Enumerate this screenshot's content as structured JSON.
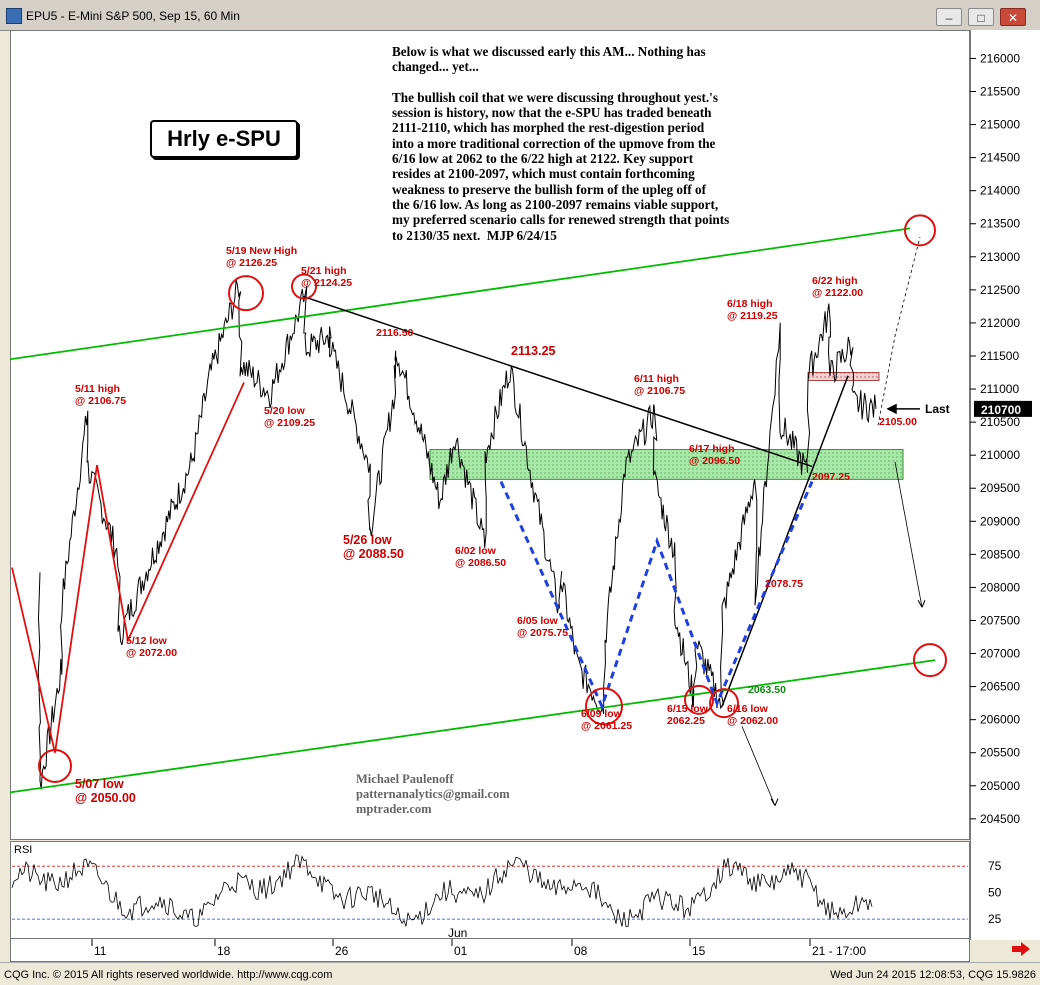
{
  "window": {
    "title": "EPU5 - E-Mini S&P 500, Sep 15, 60 Min",
    "buttons": [
      "–",
      "□",
      "✕"
    ]
  },
  "chart_data": {
    "type": "line",
    "title": "Hrly e-SPU",
    "instrument": "EPU5 - E-Mini S&P 500, Sep 15, 60 Min",
    "y_ticks": [
      "216000",
      "215500",
      "215000",
      "214500",
      "214000",
      "213500",
      "213000",
      "212500",
      "212000",
      "211500",
      "211000",
      "210500",
      "210000",
      "209500",
      "209000",
      "208500",
      "208000",
      "207500",
      "207000",
      "206500",
      "206000",
      "205500",
      "205000",
      "204500"
    ],
    "y_tick_values": [
      2160,
      2155,
      2150,
      2145,
      2140,
      2135,
      2130,
      2125,
      2120,
      2115,
      2110,
      2105,
      2100,
      2095,
      2090,
      2085,
      2080,
      2075,
      2070,
      2065,
      2060,
      2055,
      2050,
      2045
    ],
    "ylim": [
      2041.8,
      2164.3
    ],
    "x_ticks": [
      "11",
      "18",
      "26",
      "Jun",
      "01",
      "08",
      "15",
      "21 - 17:00"
    ],
    "last_price_label": "210700",
    "last_label": "Last",
    "price_path": [
      {
        "x": "5/07",
        "y": 2082
      },
      {
        "x": "5/07",
        "y": 2060
      },
      {
        "x": "5/07",
        "y": 2050
      },
      {
        "x": "5/08",
        "y": 2068
      },
      {
        "x": "5/08",
        "y": 2078
      },
      {
        "x": "5/11",
        "y": 2106.75
      },
      {
        "x": "5/11",
        "y": 2098
      },
      {
        "x": "5/12",
        "y": 2085
      },
      {
        "x": "5/12",
        "y": 2072
      },
      {
        "x": "5/13",
        "y": 2082
      },
      {
        "x": "5/14",
        "y": 2091
      },
      {
        "x": "5/15",
        "y": 2099
      },
      {
        "x": "5/18",
        "y": 2112
      },
      {
        "x": "5/19",
        "y": 2126.25
      },
      {
        "x": "5/19",
        "y": 2114
      },
      {
        "x": "5/20",
        "y": 2109.25
      },
      {
        "x": "5/21",
        "y": 2124.25
      },
      {
        "x": "5/21",
        "y": 2116
      },
      {
        "x": "5/22",
        "y": 2118
      },
      {
        "x": "5/22",
        "y": 2116.5
      },
      {
        "x": "5/26",
        "y": 2098
      },
      {
        "x": "5/26",
        "y": 2088.5
      },
      {
        "x": "5/27",
        "y": 2110
      },
      {
        "x": "5/27",
        "y": 2116.5
      },
      {
        "x": "5/28",
        "y": 2104
      },
      {
        "x": "5/29",
        "y": 2093
      },
      {
        "x": "6/01",
        "y": 2103
      },
      {
        "x": "6/02",
        "y": 2086.5
      },
      {
        "x": "6/02",
        "y": 2100
      },
      {
        "x": "6/03",
        "y": 2113.25
      },
      {
        "x": "6/04",
        "y": 2094
      },
      {
        "x": "6/05",
        "y": 2075.75
      },
      {
        "x": "6/05",
        "y": 2082
      },
      {
        "x": "6/08",
        "y": 2068
      },
      {
        "x": "6/09",
        "y": 2061.25
      },
      {
        "x": "6/09",
        "y": 2072
      },
      {
        "x": "6/10",
        "y": 2098
      },
      {
        "x": "6/11",
        "y": 2106.75
      },
      {
        "x": "6/11",
        "y": 2096
      },
      {
        "x": "6/12",
        "y": 2085
      },
      {
        "x": "6/12",
        "y": 2076
      },
      {
        "x": "6/15",
        "y": 2062.25
      },
      {
        "x": "6/15",
        "y": 2072
      },
      {
        "x": "6/16",
        "y": 2062
      },
      {
        "x": "6/16",
        "y": 2076
      },
      {
        "x": "6/17",
        "y": 2096.5
      },
      {
        "x": "6/17",
        "y": 2078.75
      },
      {
        "x": "6/18",
        "y": 2119.25
      },
      {
        "x": "6/18",
        "y": 2105
      },
      {
        "x": "6/19",
        "y": 2097.25
      },
      {
        "x": "6/19",
        "y": 2112
      },
      {
        "x": "6/22",
        "y": 2122
      },
      {
        "x": "6/22",
        "y": 2112
      },
      {
        "x": "6/23",
        "y": 2117
      },
      {
        "x": "6/23",
        "y": 2108
      },
      {
        "x": "6/24",
        "y": 2107
      }
    ],
    "annotations": [
      {
        "text": "5/19 New High",
        "line2": "@ 2126.25",
        "x": "5/19",
        "y": 2126.25
      },
      {
        "text": "5/21 high",
        "line2": "@ 2124.25",
        "x": "5/21",
        "y": 2124.25
      },
      {
        "text": "5/11 high",
        "line2": "@ 2106.75",
        "x": "5/11",
        "y": 2106.75
      },
      {
        "text": "5/20 low",
        "line2": "@ 2109.25",
        "x": "5/20",
        "y": 2109.25
      },
      {
        "text": "2116.50",
        "line2": "",
        "x": "5/27",
        "y": 2116.5
      },
      {
        "text": "2113.25",
        "line2": "",
        "x": "6/03",
        "y": 2113.25
      },
      {
        "text": "6/11 high",
        "line2": "@ 2106.75",
        "x": "6/11",
        "y": 2106.75
      },
      {
        "text": "6/18 high",
        "line2": "@ 2119.25",
        "x": "6/18",
        "y": 2119.25
      },
      {
        "text": "6/22 high",
        "line2": "@ 2122.00",
        "x": "6/22",
        "y": 2122
      },
      {
        "text": "6/17 high",
        "line2": "@ 2096.50",
        "x": "6/17",
        "y": 2096.5
      },
      {
        "text": "2105.00",
        "line2": "",
        "x": "6/24",
        "y": 2105
      },
      {
        "text": "2097.25",
        "line2": "",
        "x": "6/19",
        "y": 2097.25
      },
      {
        "text": "5/26 low",
        "line2": "@ 2088.50",
        "x": "5/26",
        "y": 2088.5
      },
      {
        "text": "6/02 low",
        "line2": "@ 2086.50",
        "x": "6/02",
        "y": 2086.5
      },
      {
        "text": "6/05 low",
        "line2": "@ 2075.75",
        "x": "6/05",
        "y": 2075.75
      },
      {
        "text": "2078.75",
        "line2": "",
        "x": "6/17",
        "y": 2078.75
      },
      {
        "text": "5/12 low",
        "line2": "@ 2072.00",
        "x": "5/12",
        "y": 2072
      },
      {
        "text": "2063.50",
        "line2": "",
        "x": "6/16",
        "y": 2063.5
      },
      {
        "text": "6/09 low",
        "line2": "@ 2061.25",
        "x": "6/09",
        "y": 2061.25
      },
      {
        "text": "6/15 low",
        "line2": "2062.25",
        "x": "6/15",
        "y": 2062.25
      },
      {
        "text": "6/16 low",
        "line2": "@ 2062.00",
        "x": "6/16",
        "y": 2062
      },
      {
        "text": "5/07 low",
        "line2": "@ 2050.00",
        "x": "5/07",
        "y": 2050
      }
    ],
    "support_zone": [
      2097.25,
      2101
    ],
    "resistance_zone": [
      2111.5,
      2112.5
    ],
    "rsi": {
      "label": "RSI",
      "ticks": [
        "75",
        "50",
        "25"
      ],
      "tick_values": [
        75,
        50,
        25
      ],
      "upper": 75,
      "lower": 25
    }
  },
  "commentary": "Below is what we discussed early this AM... Nothing has\nchanged... yet...\n\nThe bullish coil that we were discussing throughout yest.'s\nsession is history, now that the e-SPU has traded beneath\n2111-2110, which has morphed the rest-digestion period\ninto a more traditional correction of the upmove from the\n6/16 low at 2062 to the 6/22 high at 2122. Key support\nresides at 2100-2097, which must contain forthcoming\nweakness to preserve the bullish form of the upleg off of\nthe 6/16 low. As long as 2100-2097 remains viable support,\nmy preferred scenario calls for renewed strength that points\nto 2130/35 next.  MJP 6/24/15",
  "signature": [
    "Michael Paulenoff",
    "patternanalytics@gmail.com",
    "mptrader.com"
  ],
  "footer": {
    "left": "CQG Inc. © 2015 All rights reserved worldwide. http://www.cqg.com",
    "right": "Wed Jun 24 2015 12:08:53, CQG 15.9826"
  },
  "colors": {
    "annotation": "#cc0000",
    "trend_green": "#00bb00",
    "blue_dash": "#1f3fe0",
    "zone_fill": "#a8e8a8",
    "price": "#000000"
  }
}
